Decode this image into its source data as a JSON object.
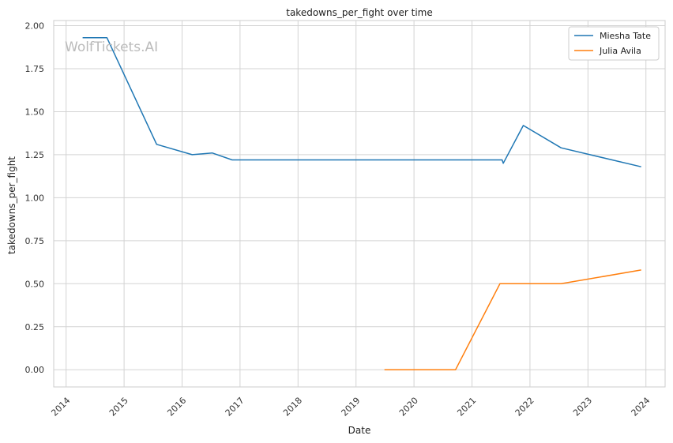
{
  "chart_data": {
    "type": "line",
    "title": "takedowns_per_fight over time",
    "xlabel": "Date",
    "ylabel": "takedowns_per_fight",
    "watermark": "WolfTickets.AI",
    "xlim": [
      "2013-10-15",
      "2024-05-01"
    ],
    "ylim": [
      -0.1,
      2.03
    ],
    "x_ticks": [
      "2014",
      "2015",
      "2016",
      "2017",
      "2018",
      "2019",
      "2020",
      "2021",
      "2022",
      "2023",
      "2024"
    ],
    "y_ticks": [
      "0.00",
      "0.25",
      "0.50",
      "0.75",
      "1.00",
      "1.25",
      "1.50",
      "1.75",
      "2.00"
    ],
    "grid": true,
    "legend_position": "top-right",
    "series": [
      {
        "name": "Miesha Tate",
        "color": "#1f77b4",
        "points": [
          {
            "x": "2014-04-15",
            "y": 1.93
          },
          {
            "x": "2014-09-15",
            "y": 1.93
          },
          {
            "x": "2015-07-25",
            "y": 1.31
          },
          {
            "x": "2016-03-05",
            "y": 1.25
          },
          {
            "x": "2016-07-09",
            "y": 1.26
          },
          {
            "x": "2016-11-12",
            "y": 1.22
          },
          {
            "x": "2021-07-10",
            "y": 1.22
          },
          {
            "x": "2021-07-17",
            "y": 1.2
          },
          {
            "x": "2021-11-20",
            "y": 1.42
          },
          {
            "x": "2022-07-16",
            "y": 1.29
          },
          {
            "x": "2023-12-02",
            "y": 1.18
          }
        ]
      },
      {
        "name": "Julia Avila",
        "color": "#ff7f0e",
        "points": [
          {
            "x": "2019-06-29",
            "y": 0.0
          },
          {
            "x": "2020-09-19",
            "y": 0.0
          },
          {
            "x": "2021-06-26",
            "y": 0.5
          },
          {
            "x": "2022-07-16",
            "y": 0.5
          },
          {
            "x": "2023-12-02",
            "y": 0.58
          }
        ]
      }
    ]
  }
}
